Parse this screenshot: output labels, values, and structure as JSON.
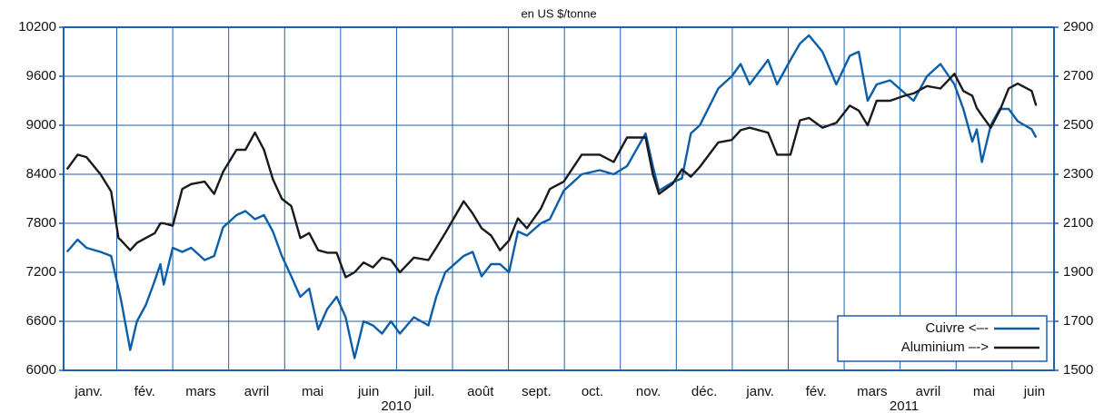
{
  "chart_data": {
    "type": "line",
    "title": "en US $/tonne",
    "x": [
      0.11,
      0.3,
      0.46,
      0.71,
      0.9,
      1.03,
      1.08,
      1.24,
      1.36,
      1.52,
      1.68,
      1.78,
      1.84,
      2.0,
      2.17,
      2.33,
      2.57,
      2.74,
      2.9,
      3.14,
      3.3,
      3.47,
      3.63,
      3.79,
      3.95,
      4.12,
      4.28,
      4.44,
      4.6,
      4.76,
      4.93,
      5.09,
      5.25,
      5.41,
      5.58,
      5.74,
      5.9,
      6.06,
      6.31,
      6.57,
      6.71,
      6.87,
      7.2,
      7.36,
      7.52,
      7.69,
      7.85,
      8.01,
      8.17,
      8.33,
      8.58,
      8.74,
      8.99,
      9.31,
      9.63,
      9.88,
      10.12,
      10.45,
      10.58,
      10.69,
      10.93,
      11.1,
      11.26,
      11.42,
      11.75,
      11.99,
      12.15,
      12.31,
      12.64,
      12.8,
      13.04,
      13.21,
      13.37,
      13.61,
      13.86,
      14.1,
      14.26,
      14.42,
      14.58,
      14.82,
      15.07,
      15.24,
      15.48,
      15.72,
      15.97,
      16.13,
      16.29,
      16.37,
      16.46,
      16.62,
      16.78,
      16.94,
      17.1,
      17.35,
      17.43
    ],
    "xlim": [
      0.05,
      17.75
    ],
    "xticks": [
      {
        "value": 0.5,
        "label": "janv."
      },
      {
        "value": 1.5,
        "label": "fév."
      },
      {
        "value": 2.5,
        "label": "mars"
      },
      {
        "value": 3.5,
        "label": "avril"
      },
      {
        "value": 4.5,
        "label": "mai"
      },
      {
        "value": 5.5,
        "label": "juin"
      },
      {
        "value": 6.5,
        "label": "juil."
      },
      {
        "value": 7.5,
        "label": "août"
      },
      {
        "value": 8.5,
        "label": "sept."
      },
      {
        "value": 9.5,
        "label": "oct."
      },
      {
        "value": 10.5,
        "label": "nov."
      },
      {
        "value": 11.5,
        "label": "déc."
      },
      {
        "value": 12.5,
        "label": "janv."
      },
      {
        "value": 13.5,
        "label": "fév."
      },
      {
        "value": 14.5,
        "label": "mars"
      },
      {
        "value": 15.5,
        "label": "avril"
      },
      {
        "value": 16.5,
        "label": "mai"
      },
      {
        "value": 17.4,
        "label": "juin"
      }
    ],
    "year_labels": [
      "2010",
      "2011"
    ],
    "ylim": [
      6000,
      10200
    ],
    "yticks": [
      6000,
      6600,
      7200,
      7800,
      8400,
      9000,
      9600,
      10200
    ],
    "y2lim": [
      1500,
      2900
    ],
    "y2ticks": [
      1500,
      1700,
      1900,
      2100,
      2300,
      2500,
      2700,
      2900
    ],
    "grid": true,
    "legend": "lower right",
    "series": [
      {
        "name": "Cuivre <–-",
        "color": "#0b5ea8",
        "axis": "y",
        "values": [
          7450,
          7600,
          7500,
          7450,
          7400,
          7000,
          6850,
          6250,
          6600,
          6800,
          7100,
          7300,
          7050,
          7500,
          7450,
          7500,
          7350,
          7400,
          7750,
          7900,
          7950,
          7850,
          7900,
          7700,
          7400,
          7150,
          6900,
          7000,
          6500,
          6750,
          6900,
          6650,
          6150,
          6600,
          6550,
          6450,
          6600,
          6450,
          6650,
          6550,
          6900,
          7200,
          7400,
          7450,
          7150,
          7300,
          7300,
          7200,
          7700,
          7650,
          7800,
          7850,
          8200,
          8400,
          8450,
          8400,
          8500,
          8900,
          8500,
          8200,
          8300,
          8350,
          8900,
          9000,
          9450,
          9600,
          9750,
          9500,
          9800,
          9500,
          9800,
          10000,
          10100,
          9900,
          9500,
          9850,
          9900,
          9300,
          9500,
          9550,
          9400,
          9300,
          9600,
          9750,
          9500,
          9200,
          8800,
          8950,
          8550,
          9000,
          9200,
          9200,
          9050,
          8950,
          8850
        ]
      },
      {
        "name": "Aluminium –->",
        "color": "#1a1a1a",
        "axis": "y2",
        "values": [
          2320,
          2380,
          2370,
          2300,
          2230,
          2040,
          2030,
          1990,
          2020,
          2040,
          2060,
          2100,
          2100,
          2090,
          2240,
          2260,
          2270,
          2220,
          2310,
          2400,
          2400,
          2470,
          2400,
          2280,
          2200,
          2170,
          2040,
          2060,
          1990,
          1980,
          1980,
          1880,
          1900,
          1940,
          1920,
          1960,
          1950,
          1900,
          1960,
          1950,
          2000,
          2060,
          2190,
          2140,
          2080,
          2050,
          1990,
          2030,
          2120,
          2080,
          2160,
          2240,
          2270,
          2380,
          2380,
          2350,
          2450,
          2450,
          2300,
          2220,
          2260,
          2320,
          2290,
          2330,
          2430,
          2440,
          2480,
          2490,
          2470,
          2380,
          2380,
          2520,
          2530,
          2490,
          2510,
          2580,
          2560,
          2500,
          2600,
          2600,
          2620,
          2630,
          2660,
          2650,
          2710,
          2640,
          2620,
          2570,
          2540,
          2490,
          2560,
          2650,
          2670,
          2640,
          2580
        ]
      }
    ]
  }
}
